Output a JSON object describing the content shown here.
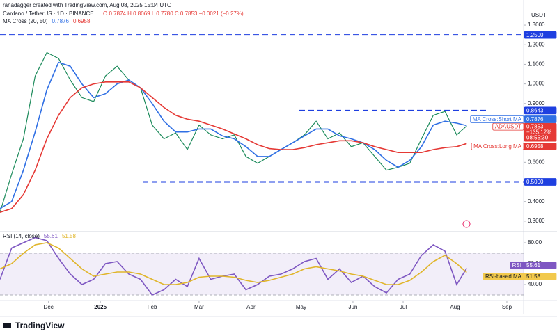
{
  "header": {
    "credit": "ranadagger created with TradingView.com, Aug 08, 2025 15:04 UTC",
    "symbol": "Cardano / TetherUS · 1D · BINANCE",
    "ohlc": "O 0.7874 H 0.8069 L 0.7780 C 0.7853 −0.0021 (−0.27%)",
    "indicator": "MA Cross (20, 50)",
    "currency": "USDT",
    "logo": "TradingView"
  },
  "chart_data": [
    {
      "type": "line",
      "xlim": [
        0,
        313
      ],
      "x": [
        0,
        7,
        14,
        21,
        28,
        35,
        42,
        49,
        56,
        63,
        70,
        77,
        84,
        91,
        98,
        105,
        112,
        119,
        126,
        133,
        140,
        147,
        154,
        161,
        168,
        175,
        182,
        189,
        196,
        203,
        210,
        217,
        224,
        231,
        238,
        245,
        252,
        259,
        266,
        273,
        279
      ],
      "ylim": [
        0.257,
        1.357
      ],
      "yticks": [
        {
          "value": 1.3,
          "label": "1.3000"
        },
        {
          "value": 1.2,
          "label": "1.2000"
        },
        {
          "value": 1.1,
          "label": "1.1000"
        },
        {
          "value": 1.0,
          "label": "1.0000"
        },
        {
          "value": 0.9,
          "label": "0.9000"
        },
        {
          "value": 0.6,
          "label": "0.6000"
        },
        {
          "value": 0.4,
          "label": "0.4000"
        },
        {
          "value": 0.3,
          "label": "0.3000"
        }
      ],
      "hlines": [
        {
          "value": 1.25,
          "label": "1.2500"
        },
        {
          "value": 0.8643,
          "label": "0.8643"
        },
        {
          "value": 0.5,
          "label": "0.5000"
        }
      ],
      "hline_color": "#1e3fe0",
      "series": [
        {
          "name": "ADAUSDT",
          "color": "#1b8a5a",
          "badge_color": "#e53935",
          "last_label": "0.7853",
          "extra_labels": [
            "+135.12%",
            "08:55:30"
          ],
          "values": [
            0.345,
            0.54,
            0.72,
            1.04,
            1.16,
            1.13,
            1.02,
            0.93,
            0.91,
            1.04,
            1.09,
            1.02,
            0.98,
            0.79,
            0.72,
            0.75,
            0.665,
            0.79,
            0.74,
            0.72,
            0.74,
            0.63,
            0.595,
            0.63,
            0.665,
            0.7,
            0.74,
            0.81,
            0.72,
            0.75,
            0.68,
            0.7,
            0.63,
            0.56,
            0.575,
            0.595,
            0.72,
            0.84,
            0.86,
            0.74,
            0.7853
          ]
        },
        {
          "name": "MA Cross:Short MA",
          "color": "#2f6fe4",
          "badge_color": "#2f6fe4",
          "last_label": "0.7876",
          "values": [
            0.364,
            0.4,
            0.56,
            0.755,
            0.97,
            1.11,
            1.09,
            1.0,
            0.93,
            0.95,
            1.0,
            1.02,
            0.98,
            0.9,
            0.81,
            0.755,
            0.755,
            0.77,
            0.77,
            0.735,
            0.72,
            0.68,
            0.63,
            0.63,
            0.665,
            0.7,
            0.735,
            0.77,
            0.77,
            0.735,
            0.72,
            0.7,
            0.665,
            0.61,
            0.575,
            0.61,
            0.68,
            0.79,
            0.81,
            0.8,
            0.7876
          ]
        },
        {
          "name": "MA Cross:Long MA",
          "color": "#e53935",
          "badge_color": "#e53935",
          "last_label": "0.6958",
          "values": [
            0.345,
            0.364,
            0.435,
            0.56,
            0.72,
            0.84,
            0.93,
            0.98,
            1.0,
            1.01,
            1.01,
            1.01,
            0.98,
            0.93,
            0.88,
            0.84,
            0.82,
            0.81,
            0.79,
            0.77,
            0.745,
            0.72,
            0.69,
            0.67,
            0.665,
            0.665,
            0.675,
            0.69,
            0.7,
            0.71,
            0.71,
            0.7,
            0.68,
            0.665,
            0.65,
            0.65,
            0.65,
            0.665,
            0.675,
            0.68,
            0.6958
          ]
        }
      ]
    },
    {
      "type": "line",
      "title": "RSI (14, close)",
      "xlim": [
        0,
        313
      ],
      "x": [
        0,
        7,
        14,
        21,
        28,
        35,
        42,
        49,
        56,
        63,
        70,
        77,
        84,
        91,
        98,
        105,
        112,
        119,
        126,
        133,
        140,
        147,
        154,
        161,
        168,
        175,
        182,
        189,
        196,
        203,
        210,
        217,
        224,
        231,
        238,
        245,
        252,
        259,
        266,
        273,
        279
      ],
      "ylim": [
        26,
        89.3
      ],
      "yticks": [
        {
          "value": 80,
          "label": "80.00"
        },
        {
          "value": 60,
          "label": "60.00"
        },
        {
          "value": 40,
          "label": "40.00"
        }
      ],
      "band": [
        30,
        70
      ],
      "xticks": [
        {
          "value": 29,
          "label": "Dec"
        },
        {
          "value": 60,
          "label": "2025"
        },
        {
          "value": 91,
          "label": "Feb"
        },
        {
          "value": 119,
          "label": "Mar"
        },
        {
          "value": 150,
          "label": "Apr"
        },
        {
          "value": 180,
          "label": "May"
        },
        {
          "value": 211,
          "label": "Jun"
        },
        {
          "value": 241,
          "label": "Jul"
        },
        {
          "value": 272,
          "label": "Aug"
        },
        {
          "value": 303,
          "label": "Sep"
        }
      ],
      "series": [
        {
          "name": "RSI",
          "color": "#7e57c2",
          "badge_color": "#7e57c2",
          "last_label": "55.61",
          "values": [
            45,
            75,
            80,
            85,
            82,
            65,
            50,
            40,
            45,
            60,
            62,
            50,
            45,
            30,
            35,
            45,
            38,
            65,
            45,
            48,
            50,
            35,
            40,
            48,
            50,
            55,
            62,
            65,
            45,
            55,
            42,
            48,
            38,
            32,
            45,
            50,
            68,
            78,
            72,
            40,
            55.61
          ]
        },
        {
          "name": "RSI-based MA",
          "color": "#e0b52a",
          "badge_color": "#f2c94c",
          "last_label": "51.58",
          "values": [
            55,
            60,
            70,
            78,
            80,
            75,
            65,
            55,
            48,
            50,
            52,
            52,
            50,
            45,
            40,
            40,
            42,
            47,
            48,
            48,
            47,
            44,
            42,
            44,
            47,
            50,
            55,
            57,
            55,
            53,
            50,
            48,
            44,
            40,
            40,
            44,
            52,
            62,
            68,
            60,
            51.58
          ]
        }
      ]
    }
  ]
}
